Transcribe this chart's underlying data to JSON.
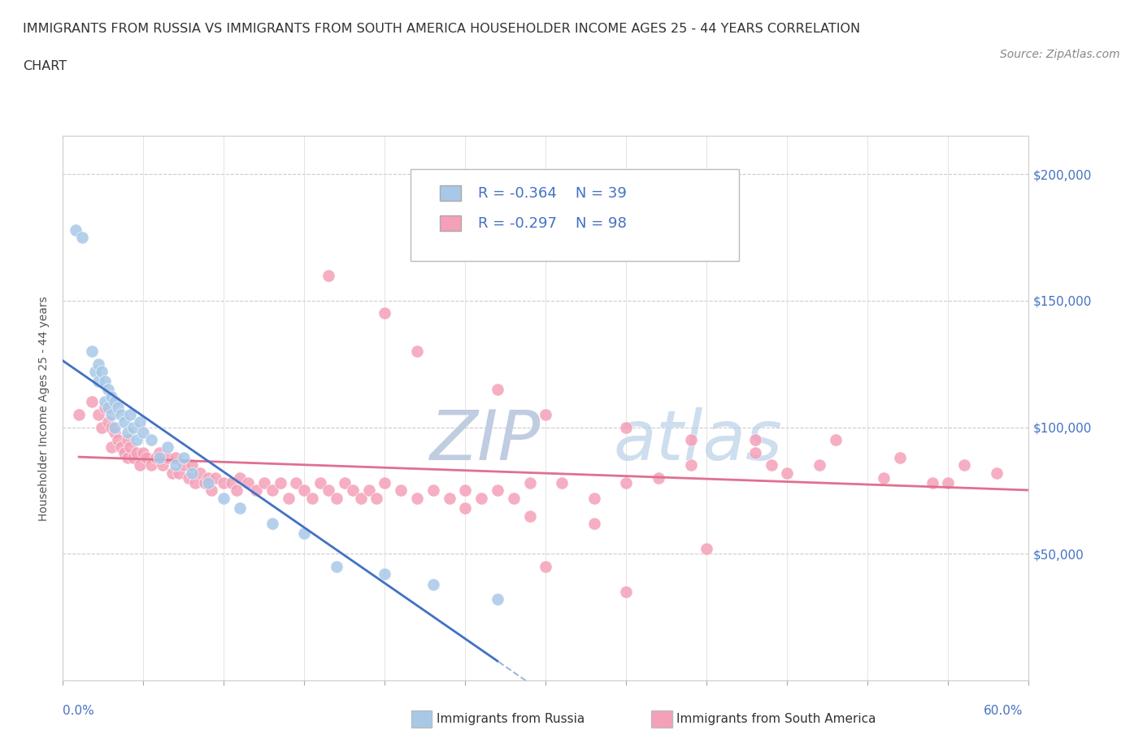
{
  "title_line1": "IMMIGRANTS FROM RUSSIA VS IMMIGRANTS FROM SOUTH AMERICA HOUSEHOLDER INCOME AGES 25 - 44 YEARS CORRELATION",
  "title_line2": "CHART",
  "source": "Source: ZipAtlas.com",
  "ylabel": "Householder Income Ages 25 - 44 years",
  "R_russia": -0.364,
  "N_russia": 39,
  "R_sa": -0.297,
  "N_sa": 98,
  "russia_color": "#a8c8e8",
  "sa_color": "#f4a0b8",
  "russia_line_color": "#4472c4",
  "sa_line_color": "#e07090",
  "dashed_color": "#a0b8d8",
  "watermark_color": "#c8daf0",
  "xmin": 0.0,
  "xmax": 0.6,
  "ymin": 0,
  "ymax": 215000,
  "russia_x": [
    0.008,
    0.012,
    0.018,
    0.02,
    0.022,
    0.022,
    0.024,
    0.026,
    0.026,
    0.028,
    0.028,
    0.03,
    0.03,
    0.032,
    0.032,
    0.034,
    0.036,
    0.038,
    0.04,
    0.042,
    0.044,
    0.046,
    0.048,
    0.05,
    0.055,
    0.06,
    0.065,
    0.07,
    0.075,
    0.08,
    0.09,
    0.1,
    0.11,
    0.13,
    0.15,
    0.17,
    0.2,
    0.23,
    0.27
  ],
  "russia_y": [
    178000,
    175000,
    130000,
    122000,
    125000,
    118000,
    122000,
    118000,
    110000,
    115000,
    108000,
    112000,
    105000,
    110000,
    100000,
    108000,
    105000,
    102000,
    98000,
    105000,
    100000,
    95000,
    102000,
    98000,
    95000,
    88000,
    92000,
    85000,
    88000,
    82000,
    78000,
    72000,
    68000,
    62000,
    58000,
    45000,
    42000,
    38000,
    32000
  ],
  "sa_x": [
    0.01,
    0.018,
    0.022,
    0.024,
    0.026,
    0.028,
    0.03,
    0.03,
    0.032,
    0.034,
    0.036,
    0.038,
    0.04,
    0.04,
    0.042,
    0.044,
    0.046,
    0.048,
    0.05,
    0.052,
    0.055,
    0.058,
    0.06,
    0.062,
    0.065,
    0.068,
    0.07,
    0.072,
    0.075,
    0.078,
    0.08,
    0.082,
    0.085,
    0.088,
    0.09,
    0.092,
    0.095,
    0.1,
    0.105,
    0.108,
    0.11,
    0.115,
    0.12,
    0.125,
    0.13,
    0.135,
    0.14,
    0.145,
    0.15,
    0.155,
    0.16,
    0.165,
    0.17,
    0.175,
    0.18,
    0.185,
    0.19,
    0.195,
    0.2,
    0.21,
    0.22,
    0.23,
    0.24,
    0.25,
    0.26,
    0.27,
    0.28,
    0.29,
    0.31,
    0.33,
    0.35,
    0.37,
    0.39,
    0.43,
    0.47,
    0.51,
    0.54,
    0.56,
    0.58,
    0.165,
    0.2,
    0.22,
    0.27,
    0.3,
    0.35,
    0.39,
    0.44,
    0.25,
    0.29,
    0.33,
    0.43,
    0.48,
    0.52,
    0.3,
    0.35,
    0.4,
    0.45,
    0.55
  ],
  "sa_y": [
    105000,
    110000,
    105000,
    100000,
    108000,
    102000,
    100000,
    92000,
    98000,
    95000,
    92000,
    90000,
    95000,
    88000,
    92000,
    88000,
    90000,
    85000,
    90000,
    88000,
    85000,
    88000,
    90000,
    85000,
    88000,
    82000,
    88000,
    82000,
    85000,
    80000,
    85000,
    78000,
    82000,
    78000,
    80000,
    75000,
    80000,
    78000,
    78000,
    75000,
    80000,
    78000,
    75000,
    78000,
    75000,
    78000,
    72000,
    78000,
    75000,
    72000,
    78000,
    75000,
    72000,
    78000,
    75000,
    72000,
    75000,
    72000,
    78000,
    75000,
    72000,
    75000,
    72000,
    75000,
    72000,
    75000,
    72000,
    78000,
    78000,
    72000,
    78000,
    80000,
    85000,
    95000,
    85000,
    80000,
    78000,
    85000,
    82000,
    160000,
    145000,
    130000,
    115000,
    105000,
    100000,
    95000,
    85000,
    68000,
    65000,
    62000,
    90000,
    95000,
    88000,
    45000,
    35000,
    52000,
    82000,
    78000
  ]
}
